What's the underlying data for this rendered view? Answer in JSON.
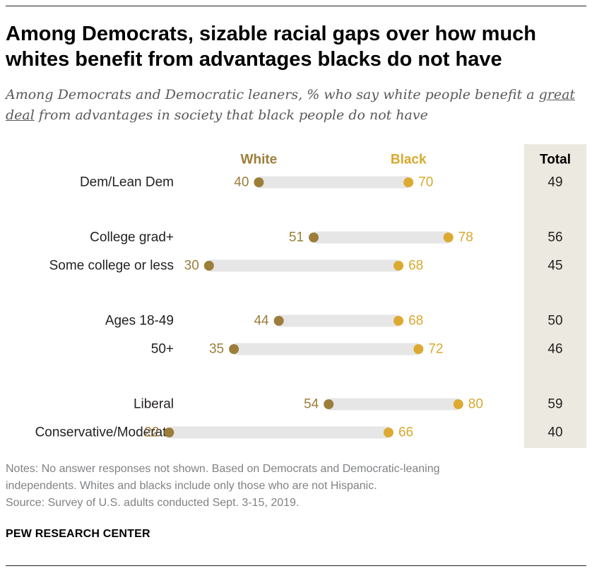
{
  "title": "Among Democrats, sizable racial gaps over how much whites benefit from advantages blacks do not have",
  "subtitle": {
    "part1": "Among Democrats and Democratic leaners, % who say white people benefit a ",
    "underlined": "great deal",
    "part2": " from advantages in society that black people do not have"
  },
  "colors": {
    "white_dot": "#9c7d3a",
    "black_dot": "#dcaa32",
    "white_label": "#9c7d3a",
    "black_label": "#d9a82e",
    "bar": "#e6e6e6",
    "total_bg": "#ece9e0",
    "text": "#231f20"
  },
  "chart_data": {
    "type": "dot",
    "series": [
      {
        "name": "White",
        "values": [
          40,
          51,
          30,
          44,
          35,
          54,
          22
        ]
      },
      {
        "name": "Black",
        "values": [
          70,
          78,
          68,
          68,
          72,
          80,
          66
        ]
      }
    ],
    "categories": [
      "Dem/Lean Dem",
      "College grad+",
      "Some college or less",
      "Ages 18-49",
      "50+",
      "Liberal",
      "Conservative/Moderate"
    ],
    "groups": [
      [
        0
      ],
      [
        1,
        2
      ],
      [
        3,
        4
      ],
      [
        5,
        6
      ]
    ],
    "total_header": "Total",
    "totals": [
      49,
      56,
      45,
      50,
      46,
      59,
      40
    ],
    "xlim": [
      0,
      100
    ]
  },
  "notes": {
    "line1": "Notes: No answer responses not shown. Based on Democrats and Democratic-leaning",
    "line2": "independents. Whites and blacks include only those who are not Hispanic.",
    "source": "Source: Survey of U.S. adults conducted Sept. 3-15, 2019."
  },
  "brand": "PEW RESEARCH CENTER"
}
